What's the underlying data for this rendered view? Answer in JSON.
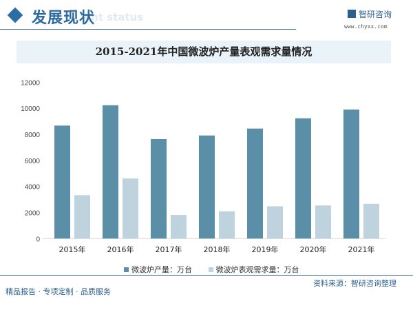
{
  "header": {
    "title": "发展现状",
    "subtitle": "ent status",
    "logo_text": "智研咨询",
    "logo_url": "www.chyxx.com"
  },
  "footer": {
    "left": "精品报告 · 专项定制 · 品质服务",
    "source": "资料来源：智研咨询整理"
  },
  "chart_data": {
    "type": "bar",
    "title": "2015-2021年中国微波炉产量表观需求量情况",
    "categories": [
      "2015年",
      "2016年",
      "2017年",
      "2018年",
      "2019年",
      "2020年",
      "2021年"
    ],
    "series": [
      {
        "name": "微波炉产量：万台",
        "color": "#5b8fa8",
        "values": [
          8670,
          10230,
          7630,
          7910,
          8440,
          9230,
          9900
        ]
      },
      {
        "name": "微波炉表观需求量：万台",
        "color": "#bfd3de",
        "values": [
          3330,
          4610,
          1810,
          2090,
          2480,
          2540,
          2670
        ]
      }
    ],
    "ylim": [
      0,
      12000
    ],
    "yticks": [
      0,
      2000,
      4000,
      6000,
      8000,
      10000,
      12000
    ],
    "grid": false,
    "legend": "bottom"
  }
}
